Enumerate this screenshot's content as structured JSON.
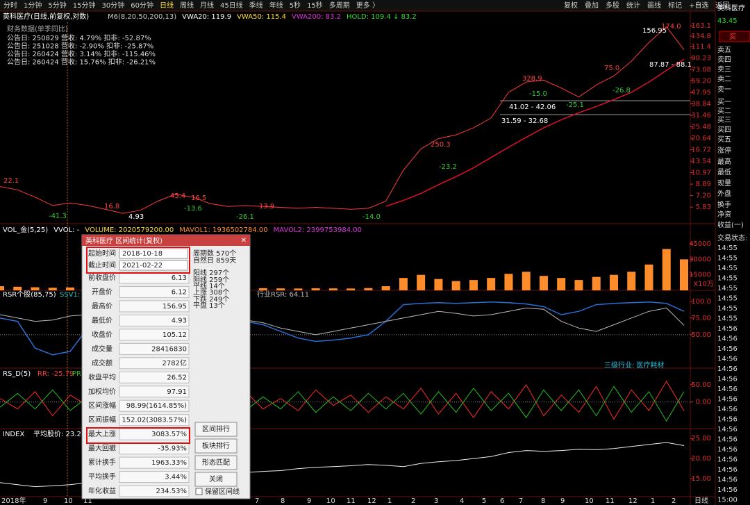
{
  "toolbar": {
    "periods": [
      "分时",
      "1分钟",
      "5分钟",
      "15分钟",
      "30分钟",
      "60分钟",
      "日线",
      "周线",
      "月线",
      "45日线",
      "季线",
      "年线",
      "5秒",
      "15秒",
      "多周期",
      "更多 〉"
    ],
    "actions": [
      "复权",
      "叠加",
      "多股",
      "统计",
      "画线",
      "标记",
      "+自选",
      "返回"
    ]
  },
  "header": {
    "title": "英科医疗(日线,前复权,对数)",
    "indicators": [
      "M6(8,20,50,200,13)",
      "VWA20: 119.9",
      "VWA50: 115.4",
      "VWA200: 83.2",
      "HOLD: 109.4 ↓ 83.2"
    ]
  },
  "finance": {
    "title": "财务数据(单季同比)",
    "rows": [
      "公告日: 250829  营收: 4.79%   扣非: -52.87%",
      "公告日: 251028  营收: -2.90%  扣非: -25.87%",
      "公告日: 260424  营收: 3.14%   扣非: -115.46%",
      "公告日: 260424  营收: 15.76%  扣非: -26.21%"
    ]
  },
  "price_panel": {
    "log_scale": true,
    "ylim": [
      4.3,
      174
    ],
    "yticks": [
      163.1,
      134.8,
      111.4,
      90.23,
      73.08,
      {
        "value": 59.2,
        "label": "59.20"
      },
      47.95,
      38.84,
      31.46,
      25.48,
      20.64,
      16.72,
      13.54,
      10.97,
      8.89,
      {
        "value": 7.2,
        "label": "7.20"
      },
      5.83
    ],
    "close": {
      "color": "#ff3b3b",
      "values": [
        8.5,
        8.0,
        7.0,
        6.0,
        6.3,
        6.0,
        5.6,
        5.2,
        5.5,
        6.5,
        7.4,
        7.0,
        6.2,
        5.9,
        6.0,
        5.9,
        5.8,
        5.7,
        5.8,
        5.7,
        5.6,
        5.7,
        6.5,
        11.5,
        17.0,
        20.5,
        22.0,
        25.0,
        30.0,
        48.0,
        58.0,
        60.0,
        52.0,
        44.0,
        55.0,
        65.0,
        85.0,
        120.0,
        160.0,
        105.0
      ]
    },
    "ma": {
      "color": "#e0102a",
      "values": [
        null,
        null,
        null,
        null,
        null,
        null,
        null,
        null,
        null,
        null,
        null,
        null,
        null,
        null,
        null,
        null,
        null,
        null,
        null,
        null,
        null,
        null,
        5.9,
        6.6,
        7.5,
        8.8,
        10.2,
        12,
        14.5,
        17.5,
        21,
        25,
        29,
        33,
        37,
        42,
        48,
        58,
        72,
        88
      ]
    },
    "annotations": [
      "156.95",
      "174.0",
      "87.87 - 88.1",
      "41.02 - 42.06",
      "31.59 - 32.68",
      "75.0",
      "-26.8",
      "-25.1",
      "-15.0",
      "328.9",
      "250.3",
      "-23.2",
      "45.4",
      "16.5",
      "-13.6",
      "16.8",
      "4.93",
      "-41.3",
      "22.1",
      "13.9",
      "-26.1",
      "-14.0"
    ]
  },
  "volume_panel": {
    "header": [
      "VOL_金(5,25)",
      "VVOL: -",
      "VOLUME: 2020579200.00",
      "MAVOL1: 1936502784.00",
      "MAVOL2: 2399753984.00"
    ],
    "ylim": [
      0,
      52400
    ],
    "yticks": [
      45000,
      30000,
      15000
    ],
    "unit": "X10万",
    "color": "#ff8c2a",
    "values": [
      4000,
      3500,
      3000,
      2500,
      2800,
      2200,
      2000,
      2600,
      3000,
      5200,
      6000,
      3500,
      2500,
      2200,
      2000,
      2100,
      1900,
      1800,
      2000,
      1900,
      1800,
      2200,
      4000,
      12000,
      15000,
      11000,
      9000,
      10000,
      12000,
      16000,
      18000,
      14000,
      12000,
      10000,
      13000,
      15000,
      18000,
      25000,
      40000,
      30000
    ]
  },
  "rsr_panel": {
    "header": [
      "RSR个股(85,75)",
      "SSV1: 9",
      "行业RSR: 64.11"
    ],
    "industry_note": "三级行业: 医疗耗材",
    "ylim": [
      0,
      106
    ],
    "yticks": [
      {
        "value": 100,
        "label": "100.0"
      },
      {
        "value": 75,
        "label": "75.00"
      },
      {
        "value": 50,
        "label": "50.00"
      }
    ],
    "series": [
      {
        "name": "RSR",
        "color": "#2a6fd6",
        "values": [
          75,
          70,
          30,
          20,
          25,
          60,
          70,
          55,
          70,
          75,
          80,
          70,
          65,
          60,
          70,
          65,
          55,
          45,
          40,
          42,
          45,
          50,
          70,
          95,
          97,
          98,
          97,
          98,
          99,
          98,
          96,
          92,
          80,
          85,
          95,
          97,
          98,
          99,
          97,
          85
        ]
      },
      {
        "name": "行业RSR",
        "color": "#bbbbbb",
        "values": [
          80,
          75,
          70,
          72,
          78,
          80,
          75,
          70,
          72,
          78,
          85,
          80,
          75,
          70,
          72,
          68,
          60,
          55,
          50,
          55,
          60,
          65,
          70,
          75,
          80,
          85,
          82,
          78,
          80,
          85,
          90,
          88,
          70,
          60,
          55,
          65,
          75,
          85,
          90,
          64.11
        ]
      }
    ]
  },
  "rsd_panel": {
    "header": [
      "RS_D(5)",
      "RR: -25.79",
      "PR:"
    ],
    "ylim": [
      -77,
      98
    ],
    "yticks": [
      {
        "value": 50,
        "label": "50.00"
      },
      {
        "value": 0,
        "label": "0.00"
      }
    ],
    "series": [
      {
        "name": "RR",
        "color": "#ff2a2a",
        "values": [
          10,
          -20,
          30,
          -40,
          20,
          -10,
          35,
          -25,
          15,
          -30,
          25,
          -15,
          20,
          -35,
          30,
          -20,
          10,
          -25,
          35,
          -10,
          20,
          -30,
          15,
          -20,
          40,
          -35,
          25,
          -45,
          30,
          -20,
          50,
          -40,
          20,
          -30,
          45,
          -50,
          35,
          -25,
          60,
          -25.79
        ]
      },
      {
        "name": "PR",
        "color": "#22c022",
        "values": [
          -15,
          25,
          -20,
          35,
          -25,
          15,
          -30,
          20,
          -20,
          25,
          -30,
          20,
          -15,
          30,
          -25,
          15,
          -20,
          30,
          -30,
          15,
          -25,
          25,
          -20,
          25,
          -35,
          30,
          -30,
          40,
          -25,
          25,
          -45,
          35,
          -25,
          35,
          -40,
          45,
          -30,
          30,
          -55,
          30
        ]
      }
    ]
  },
  "index_panel": {
    "header": [
      "INDEX",
      "平均股价: 23.22"
    ],
    "ylim": [
      10.5,
      26.6
    ],
    "yticks": [
      {
        "value": 25,
        "label": "25.00"
      },
      {
        "value": 20,
        "label": "20.00"
      },
      {
        "value": 15,
        "label": "15.00"
      }
    ],
    "color": "#eeeeee",
    "values": [
      14,
      13.5,
      13,
      13.2,
      13.5,
      14,
      14.5,
      14.8,
      15,
      15.5,
      16,
      15.8,
      16,
      16.3,
      16.5,
      16.8,
      17,
      17.5,
      17.8,
      18,
      18.2,
      18.5,
      18.3,
      18,
      18.8,
      19.2,
      19.5,
      20,
      20.5,
      21.5,
      22,
      21.8,
      22,
      22.3,
      22.2,
      22.5,
      23,
      23.5,
      24,
      23.22
    ]
  },
  "time_axis": {
    "labels": [
      "2018年",
      "9",
      "10",
      "11",
      "7",
      "8",
      "9",
      "10",
      "11",
      "12",
      "1",
      "2",
      "3",
      "4",
      "5",
      "6",
      "7",
      "8",
      "9",
      "10",
      "11",
      "12",
      "1",
      "2"
    ],
    "period": "日线"
  },
  "side_panel": {
    "name": "英科医疗",
    "price": "43.45",
    "buy": "买",
    "labels": [
      "卖五",
      "卖四",
      "卖三",
      "卖二",
      "卖一",
      "买一",
      "买二",
      "买三",
      "买四",
      "买五",
      "涨停",
      "最高",
      "最低",
      "现量",
      "外盘",
      "换手",
      "净资",
      "收益(一)",
      "交易状态:"
    ],
    "times": [
      "14:55",
      "14:55",
      "14:55",
      "14:55",
      "14:55",
      "14:55",
      "14:55",
      "14:55",
      "14:56",
      "14:56",
      "14:56",
      "14:56",
      "14:56",
      "14:56",
      "14:56",
      "14:56",
      "14:56",
      "14:56",
      "14:56",
      "14:56",
      "14:56",
      "14:56",
      "14:56",
      "14:56",
      "14:56",
      "15:00"
    ]
  },
  "dialog": {
    "title": "英科医疗 区间统计(复权)",
    "start_label": "起始时间",
    "start": "2018-10-18",
    "end_label": "截止时间",
    "end": "2021-02-22",
    "rows": [
      [
        "前收盘价",
        "6.13"
      ],
      [
        "开盘价",
        "6.12"
      ],
      [
        "最高价",
        "156.95"
      ],
      [
        "最低价",
        "4.93"
      ],
      [
        "收盘价",
        "105.12"
      ],
      [
        "成交量",
        "28416830"
      ],
      [
        "成交额",
        "2782亿"
      ],
      [
        "收盘平均",
        "26.52"
      ],
      [
        "加权均价",
        "97.91"
      ],
      [
        "区间涨幅",
        "98.99(1614.85%)"
      ],
      [
        "区间振幅",
        "152.02(3083.57%)"
      ],
      [
        "最大上涨",
        "3083.57%"
      ],
      [
        "最大回撤",
        "-35.93%"
      ],
      [
        "累计换手",
        "1963.33%"
      ],
      [
        "平均换手",
        "3.44%"
      ],
      [
        "年化收益",
        "234.53%"
      ]
    ],
    "stats": [
      "周期数  570个",
      "自然日  859天",
      "阳线  297个",
      "阴线  259个",
      "平线  14个",
      "上涨  308个",
      "下跌  249个",
      "平盘  13个"
    ],
    "buttons": [
      "区间排行",
      "板块排行",
      "形态匹配",
      "关闭"
    ],
    "checkbox": "保留区间线"
  }
}
